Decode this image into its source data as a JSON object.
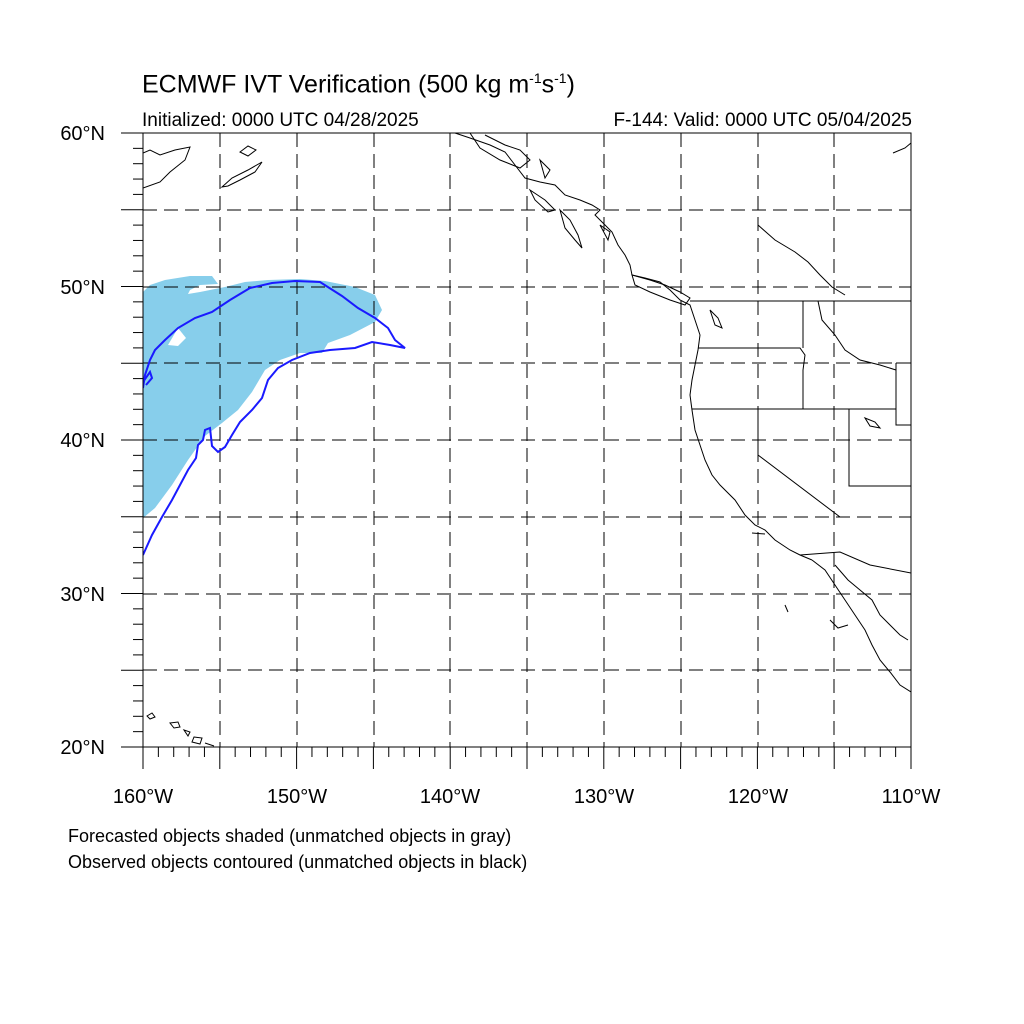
{
  "title": {
    "main": "ECMWF IVT Verification (500 kg m",
    "exp1": "-1",
    "mid": "s",
    "exp2": "-1",
    "close": ")"
  },
  "initialized": "Initialized: 0000 UTC 04/28/2025",
  "valid": "F-144: Valid: 0000 UTC 05/04/2025",
  "lat_labels": [
    "20°N",
    "30°N",
    "40°N",
    "50°N",
    "60°N"
  ],
  "lon_labels": [
    "160°W",
    "150°W",
    "140°W",
    "130°W",
    "120°W",
    "110°W"
  ],
  "captions": [
    "Forecasted objects shaded (unmatched objects in gray)",
    "Observed objects contoured (unmatched objects in black)"
  ],
  "colors": {
    "forecast_fill": "#87ceeb",
    "observed_contour": "#1a1aff",
    "coastline": "#000000",
    "grid": "#000000"
  }
}
